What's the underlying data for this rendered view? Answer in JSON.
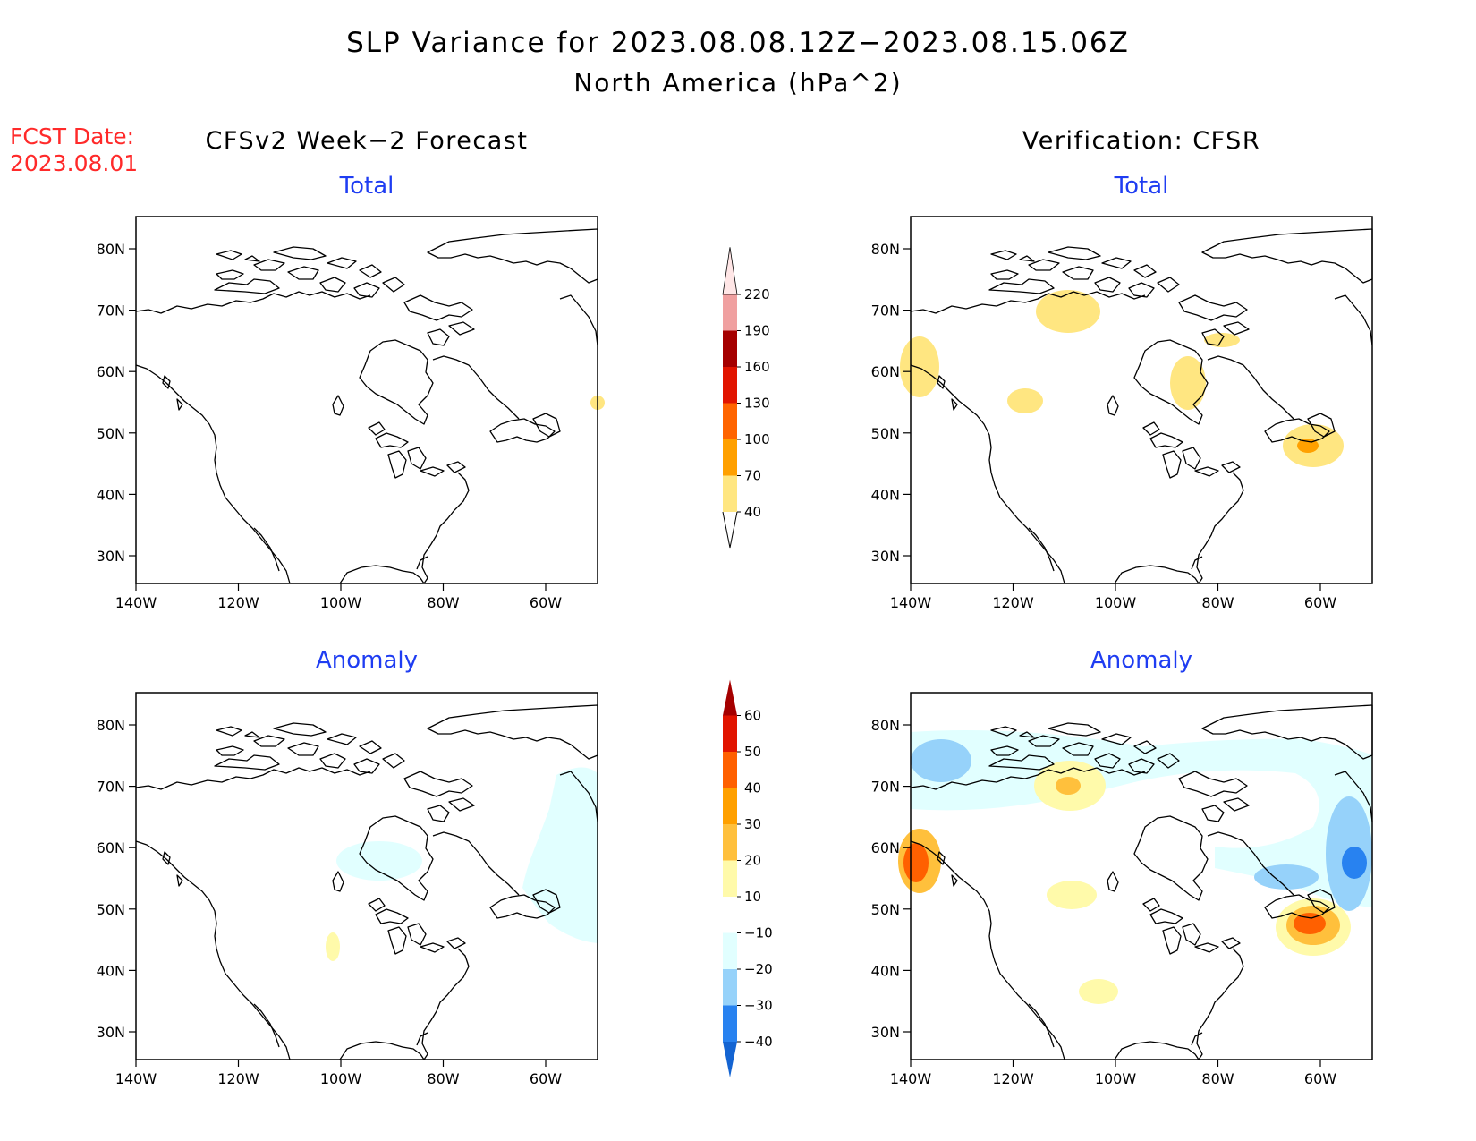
{
  "title": "SLP Variance for 2023.08.08.12Z−2023.08.15.06Z",
  "subtitle": "North America (hPa^2)",
  "fcst": {
    "label": "FCST Date:",
    "date": "2023.08.01"
  },
  "left_header": "CFSv2 Week−2 Forecast",
  "right_header": "Verification: CFSR",
  "panel_titles": {
    "total": "Total",
    "anomaly": "Anomaly"
  },
  "axes": {
    "lon_ticks": [
      "140W",
      "120W",
      "100W",
      "80W",
      "60W"
    ],
    "lat_ticks": [
      "80N",
      "70N",
      "60N",
      "50N",
      "40N",
      "30N"
    ]
  },
  "colorbars": {
    "total": {
      "labels": [
        "40",
        "70",
        "100",
        "130",
        "160",
        "190",
        "220"
      ],
      "colors": [
        "#ffe681",
        "#ffa000",
        "#ff6400",
        "#e11400",
        "#a50000",
        "#f0a0a0",
        "#ffe6e6"
      ]
    },
    "anomaly": {
      "labels": [
        "−40",
        "−30",
        "−20",
        "−10",
        "10",
        "20",
        "30",
        "40",
        "50",
        "60"
      ],
      "colors": [
        "#1464d2",
        "#2882f0",
        "#96d2fa",
        "#e1ffff",
        "#ffffff",
        "#fffaaa",
        "#ffc03c",
        "#ffa000",
        "#ff6000",
        "#e11400",
        "#a50000"
      ]
    }
  },
  "panels": [
    {
      "name": "forecast-total",
      "label": "CFSv2 Week-2 Forecast Total"
    },
    {
      "name": "verification-total",
      "label": "Verification CFSR Total"
    },
    {
      "name": "forecast-anomaly",
      "label": "CFSv2 Week-2 Forecast Anomaly"
    },
    {
      "name": "verification-anomaly",
      "label": "Verification CFSR Anomaly"
    }
  ]
}
